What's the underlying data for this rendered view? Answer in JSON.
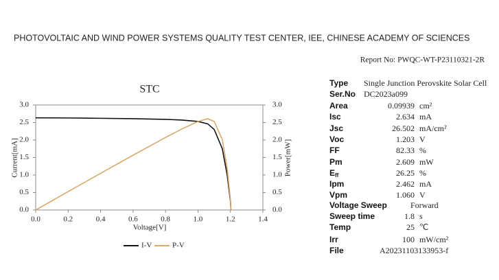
{
  "header": {
    "title": "PHOTOVOLTAIC AND WIND POWER SYSTEMS QUALITY TEST CENTER, IEE, CHINESE ACADEMY OF SCIENCES",
    "report_no": "Report No: PWQC-WT-P23110321-2R"
  },
  "chart_data": {
    "type": "line",
    "title": "STC",
    "x_label": "Voltage[V]",
    "y_label": "Current[mA]",
    "y2_label": "Power[mW]",
    "x": [
      0,
      0.2,
      0.4,
      0.6,
      0.8,
      0.9,
      1.0,
      1.06,
      1.1,
      1.15,
      1.18,
      1.2,
      1.203
    ],
    "series": [
      {
        "name": "I-V",
        "color": "#111111",
        "values": [
          2.634,
          2.63,
          2.62,
          2.61,
          2.59,
          2.57,
          2.53,
          2.462,
          2.3,
          1.75,
          1.0,
          0.25,
          0
        ]
      },
      {
        "name": "P-V",
        "color": "#d9a86c",
        "axis": "y2",
        "values": [
          0,
          0.526,
          1.048,
          1.566,
          2.072,
          2.313,
          2.53,
          2.609,
          2.53,
          2.01,
          1.18,
          0.3,
          0
        ]
      }
    ],
    "xlim": [
      0,
      1.4
    ],
    "xticks": [
      {
        "value": 0,
        "label": "0.0"
      },
      {
        "value": 0.2,
        "label": "0.2"
      },
      {
        "value": 0.4,
        "label": "0.4"
      },
      {
        "value": 0.6,
        "label": "0.6"
      },
      {
        "value": 0.8,
        "label": "0.8"
      },
      {
        "value": 1,
        "label": "1.0"
      },
      {
        "value": 1.2,
        "label": "1.2"
      },
      {
        "value": 1.4,
        "label": "1.4"
      }
    ],
    "ylim": [
      0,
      3
    ],
    "yticks": [
      {
        "value": 0,
        "label": "0.0"
      },
      0.5,
      {
        "value": 1,
        "label": "1.0"
      },
      1.5,
      {
        "value": 2,
        "label": "2.0"
      },
      2.5,
      {
        "value": 3,
        "label": "3.0"
      }
    ],
    "y2lim": [
      0,
      3
    ],
    "y2ticks": [
      {
        "value": 0,
        "label": "0.0"
      },
      0.5,
      {
        "value": 1,
        "label": "1.0"
      },
      1.5,
      {
        "value": 2,
        "label": "2.0"
      },
      2.5,
      {
        "value": 3,
        "label": "3.0"
      }
    ],
    "grid": false
  },
  "specs": {
    "rows": [
      {
        "label": "Type",
        "value": "Single Junction Perovskite Solar Cell"
      },
      {
        "label": "Ser.No",
        "value": "DC2023a099"
      },
      {
        "label": "Area",
        "value": "0.09939",
        "unit": "cm²"
      },
      {
        "label": "Isc",
        "value": "2.634",
        "unit": "mA"
      },
      {
        "label": "Jsc",
        "value": "26.502",
        "unit": "mA/cm²"
      },
      {
        "label": "Voc",
        "value": "1.203",
        "unit": "V"
      },
      {
        "label": "FF",
        "value": "82.33",
        "unit": "%"
      },
      {
        "label": "Pm",
        "value": "2.609",
        "unit": "mW"
      },
      {
        "label": "E",
        "label_sub": "ff",
        "value": "26.25",
        "unit": "%"
      },
      {
        "label": "Ipm",
        "value": "2.462",
        "unit": "mA"
      },
      {
        "label": "Vpm",
        "value": "1.060",
        "unit": "V"
      },
      {
        "label": "Voltage Sweep",
        "value": "Forward"
      },
      {
        "label": "Sweep  time",
        "value": "1.8",
        "unit": "s"
      },
      {
        "label": "Temp",
        "value": "25",
        "unit": "℃"
      },
      {
        "label": "Irr",
        "value": "100",
        "unit": "mW/cm²"
      },
      {
        "label": "File",
        "value": "A20231103133953-f"
      }
    ]
  }
}
